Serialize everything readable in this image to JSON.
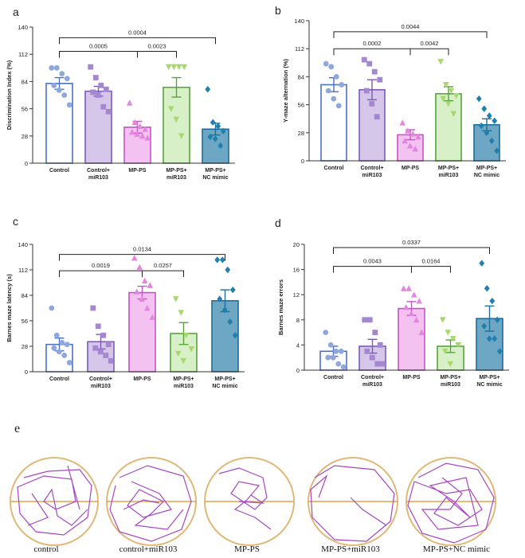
{
  "colors": {
    "control": "#4a72c4",
    "control_fill": "#ffffff",
    "control_mir": "#7d5bb5",
    "control_mir_fill": "#d5c6ea",
    "mpps": "#c455c4",
    "mpps_fill": "#f4c2f0",
    "mpps_mir": "#58a43a",
    "mpps_mir_fill": "#d8f0c8",
    "mpps_nc": "#1d6e98",
    "mpps_nc_fill": "#6ea7c4",
    "dot_control": "#8fa8dc",
    "dot_control_mir": "#a487d0",
    "dot_mpps": "#e486e0",
    "dot_mpps_mir": "#a6d86e",
    "dot_mpps_nc": "#1f7fae",
    "arena_border": "#e0b978",
    "track": "#a646c3",
    "midline": "#e0a54a"
  },
  "chart_data": [
    {
      "panel": "a",
      "type": "bar",
      "ylabel": "Discrimination Index (%)",
      "ylim": [
        0,
        140
      ],
      "yticks": [
        0,
        28,
        56,
        84,
        112,
        140
      ],
      "categories": [
        [
          "Control"
        ],
        [
          "Control+",
          "miR103"
        ],
        [
          "MP-PS"
        ],
        [
          "MP-PS+",
          "miR103"
        ],
        [
          "MP-PS+",
          "NC mimic"
        ]
      ],
      "values": [
        82,
        74,
        37,
        78,
        35
      ],
      "errors": [
        6,
        5,
        6,
        10,
        6
      ],
      "markers": [
        "circle",
        "square",
        "triangle-up",
        "triangle-down",
        "diamond"
      ],
      "points": [
        [
          98,
          98,
          92,
          87,
          80,
          75,
          70,
          60
        ],
        [
          99,
          88,
          80,
          76,
          73,
          70,
          58,
          53
        ],
        [
          62,
          42,
          38,
          35,
          32,
          30,
          28,
          26
        ],
        [
          99,
          99,
          99,
          99,
          56,
          45,
          28
        ],
        [
          76,
          42,
          38,
          33,
          27,
          25,
          18
        ]
      ],
      "comparisons": [
        {
          "from": 0,
          "to": 2,
          "label": "0.0005",
          "y": 115
        },
        {
          "from": 2,
          "to": 3,
          "label": "0.0023",
          "y": 115
        },
        {
          "from": 0,
          "to": 4,
          "label": "0.0004",
          "y": 129
        }
      ]
    },
    {
      "panel": "b",
      "type": "bar",
      "ylabel": "Y-maze alternation (%)",
      "ylim": [
        0,
        140
      ],
      "yticks": [
        0,
        28,
        56,
        84,
        112,
        140
      ],
      "categories": [
        [
          "Control"
        ],
        [
          "Control+",
          "miR103"
        ],
        [
          "MP-PS"
        ],
        [
          "MP-PS+",
          "miR103"
        ],
        [
          "MP-PS+",
          "NC mimic"
        ]
      ],
      "values": [
        76,
        71,
        26,
        67,
        36
      ],
      "errors": [
        7,
        10,
        5,
        7,
        6
      ],
      "markers": [
        "circle",
        "square",
        "triangle-up",
        "triangle-down",
        "diamond"
      ],
      "points": [
        [
          97,
          94,
          84,
          76,
          70,
          62,
          55
        ],
        [
          101,
          97,
          89,
          81,
          70,
          57,
          44
        ],
        [
          38,
          30,
          27,
          24,
          20,
          15,
          12
        ],
        [
          99,
          76,
          70,
          65,
          62,
          57,
          47
        ],
        [
          62,
          52,
          45,
          40,
          35,
          28,
          20,
          10
        ]
      ],
      "comparisons": [
        {
          "from": 0,
          "to": 2,
          "label": "0.0002",
          "y": 112
        },
        {
          "from": 2,
          "to": 3,
          "label": "0.0042",
          "y": 112
        },
        {
          "from": 0,
          "to": 4,
          "label": "0.0044",
          "y": 129
        }
      ]
    },
    {
      "panel": "c",
      "type": "bar",
      "ylabel": "Barnes maze latency (s)",
      "ylim": [
        0,
        140
      ],
      "yticks": [
        0,
        28,
        56,
        84,
        112,
        140
      ],
      "categories": [
        [
          "Control"
        ],
        [
          "Control+",
          "miR103"
        ],
        [
          "MP-PS"
        ],
        [
          "MP-PS+",
          "miR103"
        ],
        [
          "MP-PS+",
          "NC mimic"
        ]
      ],
      "values": [
        30,
        33,
        87,
        42,
        78
      ],
      "errors": [
        7,
        8,
        7,
        12,
        12
      ],
      "markers": [
        "circle",
        "square",
        "triangle-up",
        "triangle-down",
        "diamond"
      ],
      "points": [
        [
          70,
          40,
          32,
          30,
          26,
          22,
          18,
          10
        ],
        [
          70,
          50,
          40,
          30,
          26,
          22,
          18,
          12
        ],
        [
          125,
          115,
          100,
          95,
          88,
          80,
          70,
          60
        ],
        [
          80,
          65,
          40,
          25,
          20,
          12
        ],
        [
          123,
          123,
          112,
          90,
          80,
          68,
          55,
          40
        ]
      ],
      "comparisons": [
        {
          "from": 0,
          "to": 2,
          "label": "0.0019",
          "y": 111
        },
        {
          "from": 2,
          "to": 3,
          "label": "0.0257",
          "y": 111
        },
        {
          "from": 0,
          "to": 4,
          "label": "0.0134",
          "y": 129
        }
      ]
    },
    {
      "panel": "d",
      "type": "bar",
      "ylabel": "Barnes maze errors",
      "ylim": [
        0,
        20
      ],
      "yticks": [
        0,
        4,
        8,
        12,
        16,
        20
      ],
      "categories": [
        [
          "Control"
        ],
        [
          "Control+",
          "miR103"
        ],
        [
          "MP-PS"
        ],
        [
          "MP-PS+",
          "miR103"
        ],
        [
          "MP-PS+",
          "NC mimic"
        ]
      ],
      "values": [
        3,
        3.8,
        9.8,
        3.8,
        8.2
      ],
      "errors": [
        0.8,
        1.1,
        1.1,
        1.0,
        2.0
      ],
      "markers": [
        "circle",
        "square",
        "triangle-up",
        "triangle-down",
        "diamond"
      ],
      "points": [
        [
          6,
          4,
          3,
          3,
          2,
          2,
          1,
          0.5
        ],
        [
          8,
          8,
          6,
          4,
          3,
          2,
          1,
          1
        ],
        [
          13,
          13,
          12,
          11,
          10,
          9,
          8,
          6
        ],
        [
          8,
          6,
          5,
          4,
          3,
          1
        ],
        [
          17,
          13,
          11,
          8,
          7,
          5,
          5,
          3
        ]
      ],
      "comparisons": [
        {
          "from": 0,
          "to": 2,
          "label": "0.0043",
          "y": 16.5
        },
        {
          "from": 2,
          "to": 3,
          "label": "0.0164",
          "y": 16.5
        },
        {
          "from": 0,
          "to": 4,
          "label": "0.0337",
          "y": 19.5
        }
      ]
    }
  ],
  "panel_e": {
    "letter": "e",
    "labels": [
      "control",
      "control+miR103",
      "MP-PS",
      "MP-PS+miR103",
      "MP-PS+NC mimic"
    ]
  }
}
